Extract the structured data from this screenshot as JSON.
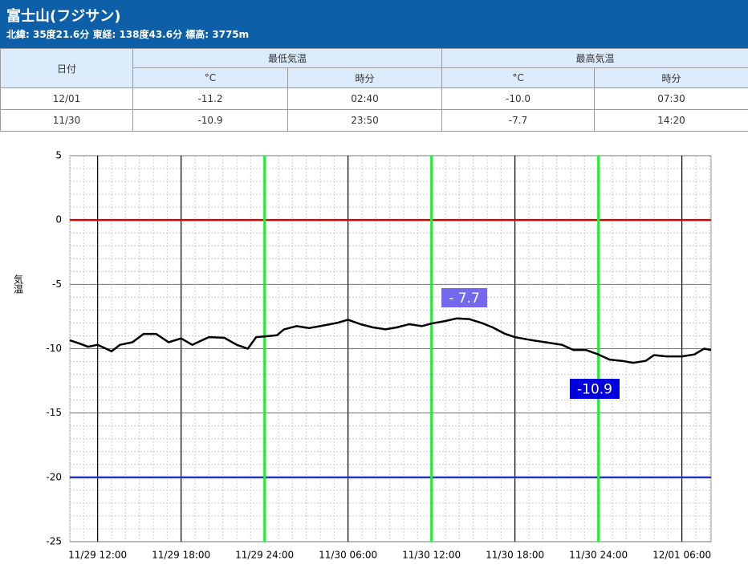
{
  "header": {
    "title": "富士山(フジサン)",
    "subtitle": "北緯: 35度21.6分 東経: 138度43.6分 標高: 3775m"
  },
  "table": {
    "header": [
      "日付",
      "最低気温",
      "最高気温"
    ],
    "subheader": [
      "°C",
      "時分",
      "°C",
      "時分"
    ],
    "rows": [
      [
        "12/01",
        "-11.2",
        "02:40",
        "-10.0",
        "07:30"
      ],
      [
        "11/30",
        "-10.9",
        "23:50",
        "-7.7",
        "14:20"
      ]
    ]
  },
  "chart_data": {
    "type": "line",
    "ylabel": "気温",
    "x": [
      10,
      10.7,
      11.3,
      12,
      13,
      13.6,
      14.5,
      15.3,
      16.2,
      17.1,
      18,
      18.8,
      20,
      21.1,
      22,
      22.8,
      23.4,
      24,
      24.9,
      25.4,
      26.3,
      27.2,
      28,
      29.2,
      30,
      30.9,
      31.8,
      32.7,
      33.5,
      34.4,
      35.3,
      36,
      37,
      37.8,
      38.7,
      39.6,
      40.4,
      41.3,
      42,
      43,
      44.2,
      45.4,
      46.2,
      47.1,
      48,
      48.8,
      49.7,
      50.5,
      51.4,
      52,
      52.9,
      54,
      54.9,
      55.6,
      56.1
    ],
    "values": [
      -9.35,
      -9.6,
      -9.85,
      -9.7,
      -10.2,
      -9.7,
      -9.5,
      -8.85,
      -8.85,
      -9.5,
      -9.2,
      -9.7,
      -9.1,
      -9.15,
      -9.7,
      -10.0,
      -9.1,
      -9.05,
      -8.95,
      -8.5,
      -8.25,
      -8.4,
      -8.25,
      -8.0,
      -7.75,
      -8.1,
      -8.35,
      -8.5,
      -8.35,
      -8.1,
      -8.25,
      -8.05,
      -7.85,
      -7.65,
      -7.7,
      -8.0,
      -8.35,
      -8.85,
      -9.1,
      -9.3,
      -9.5,
      -9.7,
      -10.1,
      -10.1,
      -10.45,
      -10.85,
      -10.95,
      -11.1,
      -10.95,
      -10.5,
      -10.6,
      -10.6,
      -10.45,
      -10.0,
      -10.1
    ],
    "color": "#000000",
    "xlim": [
      10,
      56.1
    ],
    "xticks": [
      {
        "value": 12,
        "label": "11/29 12:00"
      },
      {
        "value": 18,
        "label": "11/29 18:00"
      },
      {
        "value": 24,
        "label": "11/29 24:00"
      },
      {
        "value": 30,
        "label": "11/30 06:00"
      },
      {
        "value": 36,
        "label": "11/30 12:00"
      },
      {
        "value": 42,
        "label": "11/30 18:00"
      },
      {
        "value": 48,
        "label": "11/30 24:00"
      },
      {
        "value": 54,
        "label": "12/01 06:00"
      }
    ],
    "ylim": [
      -25,
      5
    ],
    "yticks": [
      5,
      0,
      -5,
      -10,
      -15,
      -20,
      -25
    ],
    "grid": true,
    "minor_step_x": 1,
    "minor_step_y": 1,
    "hlines": [
      {
        "value": 0,
        "color": "#dd0000"
      },
      {
        "value": -20,
        "color": "#2233cc"
      }
    ],
    "vlines": [
      {
        "value": 24,
        "color": "#22ee33"
      },
      {
        "value": 36,
        "color": "#22ee33"
      },
      {
        "value": 48,
        "color": "#22ee33"
      }
    ],
    "annotations": [
      {
        "text": "- 7.7",
        "color": "#7468ee"
      },
      {
        "text": "-10.9",
        "color": "#0000dd"
      }
    ]
  }
}
